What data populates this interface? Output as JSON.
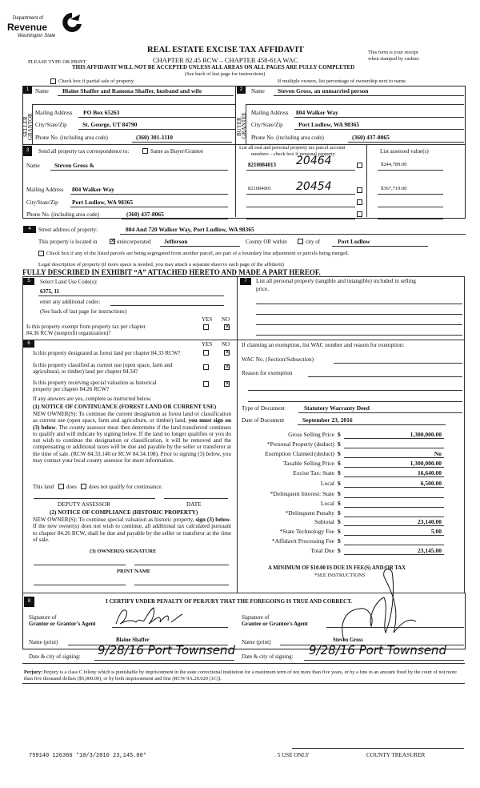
{
  "logo": {
    "line1": "Department of",
    "line2": "Revenue",
    "line3": "Washington State"
  },
  "header": {
    "title": "REAL ESTATE EXCISE TAX AFFIDAVIT",
    "chapter": "CHAPTER 82.45 RCW – CHAPTER 458-61A WAC",
    "please_type": "PLEASE TYPE OR PRINT",
    "receipt_1": "This form is your receipt",
    "receipt_2": "when stamped by cashier.",
    "warning": "THIS AFFIDAVIT WILL NOT BE ACCEPTED UNLESS ALL AREAS ON ALL PAGES ARE FULLY COMPLETED",
    "see_back": "(See back of last page for instructions)",
    "partial_sale": "Check box if partial sale of property",
    "multiple_owners": "If multiple owners, list percentage of ownership next to name."
  },
  "seller": {
    "num": "1",
    "side_label_1": "SELLER",
    "side_label_2": "GRANTOR",
    "name_label": "Name",
    "name": "Blaine Shaffer and Ramona Shaffer, husband and wife",
    "mail_label": "Mailing Address",
    "mail": "PO Box 65263",
    "city_label": "City/State/Zip",
    "city": "St. George, UT 84790",
    "phone_label": "Phone No. (including area code)",
    "phone": "(360) 301-1110"
  },
  "buyer": {
    "num": "2",
    "side_label_1": "BUYER",
    "side_label_2": "GRANTEE",
    "name_label": "Name",
    "name": "Steven Gross, an unmarried person",
    "mail_label": "Mailing Address",
    "mail": "804 Walker Way",
    "city_label": "City/State/Zip",
    "city": "Port Ludlow, WA 98365",
    "phone_label": "Phone No. (including area code)",
    "phone": "(360) 437-8065"
  },
  "section3": {
    "num": "3",
    "send_label": "Send all property tax correspondence to:",
    "same_as": "Same as Buyer/Grantee",
    "name_label": "Name",
    "name": "Steven Gross &",
    "mail_label": "Mailing Address",
    "mail": "804 Walker Way",
    "city_label": "City/State/Zip",
    "city": "Port Ludlow, WA 98365",
    "phone_label": "Phone No. (including area code)",
    "phone": "(360) 437-8065",
    "parcel_header_1": "List all real and personal property tax parcel account",
    "parcel_header_2": "numbers – check box if personal property",
    "assessed_header": "List assessed value(s)",
    "parcels": [
      {
        "number": "8210084013",
        "handwritten": "20464",
        "value": "$244,789.00"
      },
      {
        "number": "821084001",
        "handwritten": "20454",
        "value": "$367,719.00"
      }
    ]
  },
  "section4": {
    "num": "4",
    "street_label": "Street address of property:",
    "street": "804 And 720 Walker Way, Port Ludlow, WA  98365",
    "located_label": "This property is located in",
    "unincorporated": "unincorporated",
    "county": "Jefferson",
    "county_or": "County OR  within",
    "city_of": "city of",
    "city": "Port Ludlow",
    "segregated": "Check box if any of the listed parcels are being segregated from another parcel, are part of a boundary line adjustment or parcels being merged.",
    "legal_label": "Legal description of property (if more space is needed, you may attach a separate sheet to each page of the affidavit)",
    "legal": "FULLY DESCRIBED IN EXHIBIT “A” ATTACHED HERETO AND MADE A PART HEREOF."
  },
  "section5": {
    "num": "5",
    "land_use_label": "Select Land Use Code(s):",
    "land_use": "6375, 11",
    "additional": "enter any additional codes:",
    "see_back": "(See back of last page for instructions)",
    "yes": "YES",
    "no": "NO",
    "exempt_q1": "Is this property exempt from property tax per chapter",
    "exempt_q2": "84.36 RCW (nonprofit organization)?",
    "exempt_answer": "NO"
  },
  "section6": {
    "num": "6",
    "yes": "YES",
    "no": "NO",
    "q1": "Is this property designated as forest land per chapter 84.33 RCW?",
    "q2a": "Is this property classified as current use (open space, farm and",
    "q2b": "agricultural, or timber) land per chapter 84.34?",
    "q3a": "Is this property receiving special valuation as historical",
    "q3b": "property per chapter 84.26 RCW?",
    "answers": [
      "NO",
      "NO",
      "NO"
    ],
    "if_yes": "If any answers are yes, complete as instructed below.",
    "notice1_title": "(1) NOTICE OF CONTINUANCE (FOREST LAND OR CURRENT USE)",
    "notice1_a": "NEW OWNER(S): To continue the current designation as forest land or classification as current use (open space, farm and agriculture, or timber) land, ",
    "notice1_bold": "you must sign on (3) below",
    "notice1_b": ". The county assessor must then determine if the land transferred continues to qualify and will indicate by signing below. If the land no longer qualifies or you do not wish to continue the designation or classification, it will be removed and the compensating or additional taxes will be due and payable by the seller or transferor at the time of sale. (RCW 84.33.140 or RCW 84.34.108). Prior to signing (3) below, you may contact your local county assessor for more information.",
    "this_land": "This land",
    "does": "does",
    "does_not": "does not qualify for continuance.",
    "deputy": "DEPUTY ASSESSOR",
    "date": "DATE",
    "notice2_title": "(2) NOTICE OF COMPLIANCE (HISTORIC PROPERTY)",
    "notice2_a": "NEW OWNER(S): To continue special valuation as historic property, ",
    "notice2_bold": "sign (3) below",
    "notice2_b": ". If the new owner(s) does not wish to continue, all additional tax calculated pursuant to chapter 84.26 RCW, shall be due and payable by the seller or transferor at the time of sale.",
    "owner_sig": "(3)  OWNER(S) SIGNATURE",
    "print_name": "PRINT NAME"
  },
  "section7": {
    "num": "7",
    "personal_1": "List all personal property (tangible and intangible) included in selling",
    "personal_2": "price.",
    "exemption_label": "If claiming an exemption, list WAC number and reason for exemption:",
    "wac_label": "WAC No. (Section/Subsection)",
    "reason_label": "Reason for exemption",
    "doc_type_label": "Type of Document",
    "doc_type": "Statutory Warranty Deed",
    "doc_date_label": "Date of Document",
    "doc_date": "September 23, 2016",
    "currency": "$",
    "prices": [
      {
        "label": "Gross Selling Price",
        "value": "1,300,000.00"
      },
      {
        "label": "*Personal Property (deduct)",
        "value": ""
      },
      {
        "label": "Exemption Claimed (deduct)",
        "value": "No"
      },
      {
        "label": "Taxable Selling Price",
        "value": "1,300,000.00"
      },
      {
        "label": "Excise Tax:  State",
        "value": "16,640.00"
      },
      {
        "label": "Local",
        "value": "6,500.00"
      },
      {
        "label": "*Delinquent Interest:  State",
        "value": ""
      },
      {
        "label": "Local",
        "value": ""
      },
      {
        "label": "*Delinquent Penalty",
        "value": ""
      },
      {
        "label": "Subtotal",
        "value": "23,140.00"
      },
      {
        "label": "*State Technology Fee",
        "value": "5.00"
      },
      {
        "label": "*Affidavit Processing Fee",
        "value": ""
      },
      {
        "label": "Total Due",
        "value": "23,145.00"
      }
    ],
    "minimum": "A MINIMUM OF $10.00 IS DUE IN FEE(S) AND/OR TAX",
    "see_instructions": "*SEE INSTRUCTIONS"
  },
  "section8": {
    "num": "8",
    "certify": "I CERTIFY UNDER PENALTY OF PERJURY THAT THE FOREGOING IS TRUE AND CORRECT.",
    "grantor_sig_1": "Signature of",
    "grantor_sig_2": "Grantor or Grantor's Agent",
    "grantee_sig_1": "Signature of",
    "grantee_sig_2": "Grantee or Grantee's Agent",
    "name_print": "Name (print)",
    "grantor_name": "Blaine  Shaffer",
    "grantee_name": "Steven  Gross",
    "date_city": "Date & city of signing:",
    "grantor_date_city": "9/28/16 Port Townsend",
    "grantee_date_city": "9/28/16 Port Townsend",
    "perjury_bold": "Perjury:",
    "perjury": " Perjury is a class C felony which is punishable by imprisonment in the state correctional institution for a maximum term of not more than five years, or by a fine in an amount fixed by the court of not more than five thousand dollars ($5,000.00), or by both imprisonment and fine (RCW 9A.20.020 (1C))."
  },
  "footer": {
    "receipt_stamp": "759140 126366 *10/3/2016 23,145.00*",
    "use_only": ". 5 USE ONLY",
    "county_treasurer": "COUNTY TREASURER"
  }
}
